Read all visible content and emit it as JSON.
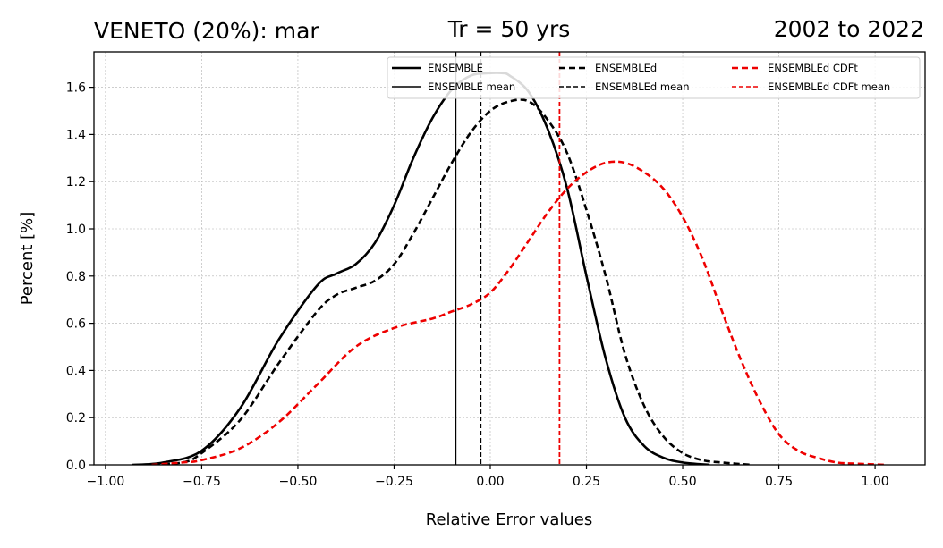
{
  "chart_data": {
    "type": "line",
    "title_left": "VENETO (20%): mar",
    "title_center": "Tr = 50 yrs",
    "title_right": "2002 to 2022",
    "xlabel": "Relative Error values",
    "ylabel": "Percent [%]",
    "xlim": [
      -1.03,
      1.13
    ],
    "ylim": [
      0,
      1.75
    ],
    "grid": true,
    "legend_position": "top-right",
    "x_ticks": [
      -1.0,
      -0.75,
      -0.5,
      -0.25,
      0.0,
      0.25,
      0.5,
      0.75,
      1.0
    ],
    "x_tick_labels": [
      "−1.00",
      "−0.75",
      "−0.50",
      "−0.25",
      "0.00",
      "0.25",
      "0.50",
      "0.75",
      "1.00"
    ],
    "y_ticks": [
      0.0,
      0.2,
      0.4,
      0.6,
      0.8,
      1.0,
      1.2,
      1.4,
      1.6
    ],
    "y_tick_labels": [
      "0.0",
      "0.2",
      "0.4",
      "0.6",
      "0.8",
      "1.0",
      "1.2",
      "1.4",
      "1.6"
    ],
    "series": [
      {
        "name": "ENSEMBLE",
        "color": "#000000",
        "dash": "solid",
        "x": [
          -0.93,
          -0.85,
          -0.75,
          -0.65,
          -0.55,
          -0.45,
          -0.4,
          -0.35,
          -0.3,
          -0.25,
          -0.2,
          -0.15,
          -0.1,
          -0.05,
          0.0,
          0.03,
          0.05,
          0.1,
          0.15,
          0.2,
          0.25,
          0.3,
          0.35,
          0.4,
          0.45,
          0.5,
          0.57
        ],
        "y": [
          0.0,
          0.01,
          0.06,
          0.24,
          0.53,
          0.76,
          0.81,
          0.85,
          0.94,
          1.1,
          1.3,
          1.47,
          1.59,
          1.65,
          1.66,
          1.66,
          1.65,
          1.58,
          1.42,
          1.17,
          0.8,
          0.45,
          0.2,
          0.08,
          0.03,
          0.01,
          0.0
        ]
      },
      {
        "name": "ENSEMBLEd",
        "color": "#000000",
        "dash": "dashed",
        "x": [
          -0.9,
          -0.8,
          -0.75,
          -0.65,
          -0.55,
          -0.45,
          -0.4,
          -0.35,
          -0.3,
          -0.25,
          -0.2,
          -0.15,
          -0.1,
          -0.05,
          0.0,
          0.05,
          0.1,
          0.15,
          0.2,
          0.25,
          0.3,
          0.35,
          0.4,
          0.45,
          0.5,
          0.55,
          0.6,
          0.68
        ],
        "y": [
          0.0,
          0.01,
          0.05,
          0.19,
          0.43,
          0.65,
          0.72,
          0.75,
          0.78,
          0.85,
          0.98,
          1.13,
          1.28,
          1.41,
          1.5,
          1.54,
          1.54,
          1.46,
          1.32,
          1.08,
          0.8,
          0.47,
          0.25,
          0.12,
          0.05,
          0.02,
          0.01,
          0.0
        ]
      },
      {
        "name": "ENSEMBLEd CDFt",
        "color": "#ee0000",
        "dash": "dashed",
        "x": [
          -0.88,
          -0.8,
          -0.75,
          -0.65,
          -0.55,
          -0.45,
          -0.35,
          -0.25,
          -0.15,
          -0.1,
          -0.05,
          0.0,
          0.05,
          0.1,
          0.15,
          0.2,
          0.25,
          0.3,
          0.35,
          0.4,
          0.45,
          0.5,
          0.55,
          0.6,
          0.65,
          0.7,
          0.75,
          0.8,
          0.85,
          0.9,
          0.95,
          1.03
        ],
        "y": [
          0.0,
          0.01,
          0.02,
          0.07,
          0.18,
          0.34,
          0.5,
          0.58,
          0.62,
          0.65,
          0.68,
          0.73,
          0.83,
          0.95,
          1.07,
          1.17,
          1.24,
          1.28,
          1.28,
          1.24,
          1.17,
          1.05,
          0.88,
          0.66,
          0.45,
          0.27,
          0.13,
          0.06,
          0.03,
          0.01,
          0.005,
          0.0
        ]
      }
    ],
    "vlines": [
      {
        "name": "ENSEMBLE mean",
        "x": -0.09,
        "color": "#000000",
        "dash": "solid"
      },
      {
        "name": "ENSEMBLEd mean",
        "x": -0.025,
        "color": "#000000",
        "dash": "dashed"
      },
      {
        "name": "ENSEMBLEd CDFt mean",
        "x": 0.18,
        "color": "#ee0000",
        "dash": "dashed"
      }
    ],
    "legend": [
      {
        "label": "ENSEMBLE",
        "color": "#000000",
        "dash": "solid",
        "weight": "thick"
      },
      {
        "label": "ENSEMBLE mean",
        "color": "#000000",
        "dash": "solid",
        "weight": "thin"
      },
      {
        "label": "ENSEMBLEd",
        "color": "#000000",
        "dash": "dashed",
        "weight": "thick"
      },
      {
        "label": "ENSEMBLEd mean",
        "color": "#000000",
        "dash": "dashed",
        "weight": "thin"
      },
      {
        "label": "ENSEMBLEd CDFt",
        "color": "#ee0000",
        "dash": "dashed",
        "weight": "thick"
      },
      {
        "label": "ENSEMBLEd CDFt mean",
        "color": "#ee0000",
        "dash": "dashed",
        "weight": "thin"
      }
    ]
  }
}
